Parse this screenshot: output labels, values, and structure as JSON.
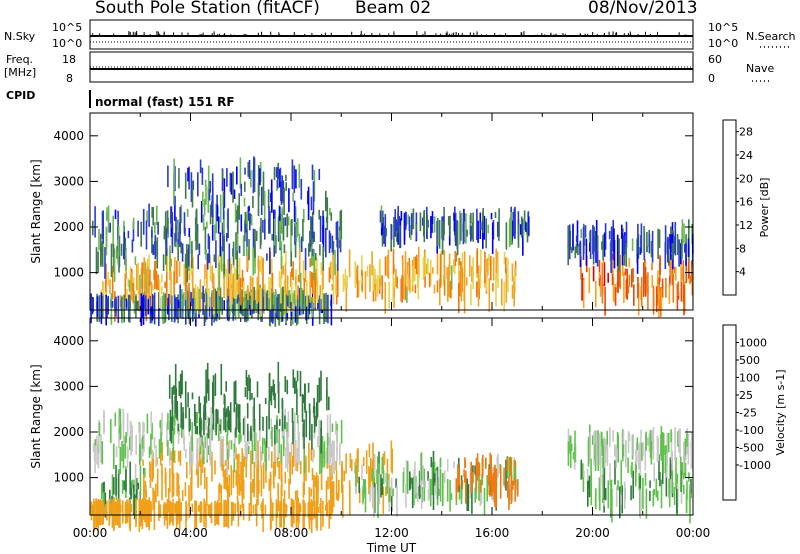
{
  "header": {
    "station": "South Pole Station (fitACF)",
    "beam": "Beam 02",
    "date": "08/Nov/2013"
  },
  "strip": {
    "nsky_label": "N.Sky",
    "nsky_ticks": [
      "10^5",
      "10^0"
    ],
    "nsearch_label": "N.Search",
    "nsearch_ticks": [
      "10^5",
      "10^0"
    ],
    "freq_label": "Freq.",
    "freq_unit": "[MHz]",
    "freq_ticks": [
      "18",
      "8"
    ],
    "nave_label": "Nave",
    "nave_ticks": [
      "60",
      "0"
    ],
    "cpid_label": "CPID",
    "cpid_text": "normal (fast) 151 RF"
  },
  "colors": {
    "power_scale": [
      "#0000ff",
      "#2a3ad0",
      "#3e7a4a",
      "#6ab854",
      "#e8d24a",
      "#f3a323",
      "#f07a12",
      "#e84a0a",
      "#dd0000"
    ],
    "velocity_scale": [
      "#1c3fc8",
      "#3d74ce",
      "#2e7a3c",
      "#5ec24a",
      "#c8c8c8",
      "#c8c8c8",
      "#f0a018",
      "#f07a12",
      "#e03010",
      "#dd0000"
    ],
    "ground_scatter": "#bdbdbd"
  },
  "chart_data": [
    {
      "type": "heatmap",
      "panel": "power",
      "ylabel": "Slant Range [km]",
      "xlim": [
        "00:00",
        "24:00"
      ],
      "ylim": [
        180,
        4500
      ],
      "x_ticks": [
        "00:00",
        "04:00",
        "08:00",
        "12:00",
        "16:00",
        "20:00",
        "00:00"
      ],
      "y_ticks": [
        1000,
        2000,
        3000,
        4000
      ],
      "colorbar": {
        "label": "Power [dB]",
        "ticks": [
          4,
          8,
          12,
          16,
          20,
          24,
          28
        ],
        "range": [
          0,
          30
        ]
      },
      "echo_regions": [
        {
          "t_start": 0.4,
          "t_end": 2.3,
          "range_low": 400,
          "range_high": 1200,
          "power_db": 17
        },
        {
          "t_start": 0.0,
          "t_end": 9.6,
          "range_low": 320,
          "range_high": 380,
          "power_db": 6
        },
        {
          "t_start": 3.5,
          "t_end": 8.5,
          "range_low": 450,
          "range_high": 550,
          "power_db": 10
        },
        {
          "t_start": 2.0,
          "t_end": 17.0,
          "range_low": 600,
          "range_high": 1400,
          "power_db": 18
        },
        {
          "t_start": 0.0,
          "t_end": 10.0,
          "range_low": 1300,
          "range_high": 2400,
          "power_db": 8
        },
        {
          "t_start": 3.0,
          "t_end": 9.5,
          "range_low": 2000,
          "range_high": 3400,
          "power_db": 7
        },
        {
          "t_start": 11.5,
          "t_end": 17.5,
          "range_low": 1900,
          "range_high": 2300,
          "power_db": 6
        },
        {
          "t_start": 19.5,
          "t_end": 24.0,
          "range_low": 500,
          "range_high": 1300,
          "power_db": 22
        },
        {
          "t_start": 19.0,
          "t_end": 24.0,
          "range_low": 1500,
          "range_high": 2000,
          "power_db": 6
        }
      ]
    },
    {
      "type": "heatmap",
      "panel": "velocity",
      "ylabel": "Slant Range [km]",
      "xlabel": "Time UT",
      "xlim": [
        "00:00",
        "24:00"
      ],
      "ylim": [
        180,
        4500
      ],
      "x_ticks": [
        "00:00",
        "04:00",
        "08:00",
        "12:00",
        "16:00",
        "20:00",
        "00:00"
      ],
      "y_ticks": [
        1000,
        2000,
        3000,
        4000
      ],
      "colorbar": {
        "label": "Velocity [m s-1]",
        "ticks": [
          "1000",
          "500",
          "100",
          "25",
          "-25",
          "-100",
          "-500",
          "-1000"
        ]
      },
      "echo_regions": [
        {
          "t_start": 0.4,
          "t_end": 2.3,
          "range_low": 400,
          "range_high": 1200,
          "velocity": 100
        },
        {
          "t_start": 0.0,
          "t_end": 9.6,
          "range_low": 320,
          "range_high": 380,
          "velocity": -300
        },
        {
          "t_start": 2.0,
          "t_end": 12.0,
          "range_low": 600,
          "range_high": 1700,
          "velocity": -300
        },
        {
          "t_start": 10.5,
          "t_end": 17.0,
          "range_low": 600,
          "range_high": 1400,
          "velocity": 50
        },
        {
          "t_start": 14.5,
          "t_end": 17.0,
          "range_low": 800,
          "range_high": 1400,
          "velocity": -700
        },
        {
          "t_start": 0.0,
          "t_end": 10.0,
          "range_low": 1500,
          "range_high": 2400,
          "velocity": 0
        },
        {
          "t_start": 3.0,
          "t_end": 9.5,
          "range_low": 2000,
          "range_high": 3400,
          "velocity": 200
        },
        {
          "t_start": 19.5,
          "t_end": 24.0,
          "range_low": 500,
          "range_high": 1400,
          "velocity": 80
        },
        {
          "t_start": 19.0,
          "t_end": 24.0,
          "range_low": 1500,
          "range_high": 2000,
          "velocity": 0
        }
      ]
    }
  ]
}
